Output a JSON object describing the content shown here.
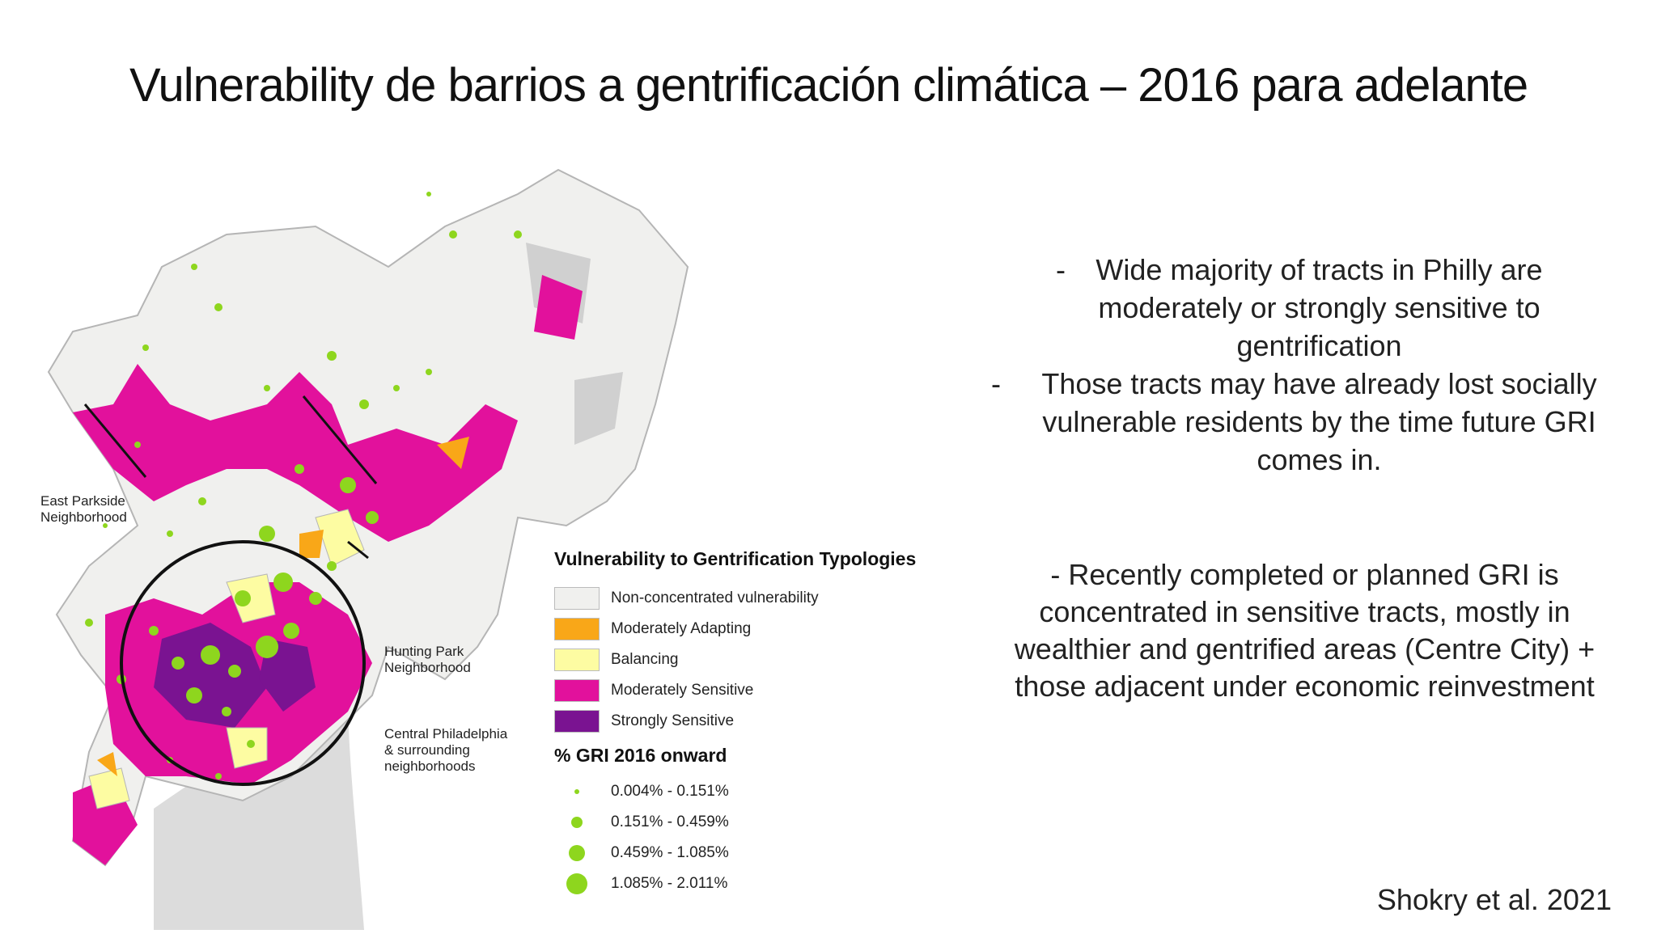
{
  "slide": {
    "title": "Vulnerability de barrios a gentrificación climática – 2016 para adelante",
    "citation": "Shokry et al. 2021"
  },
  "bullets": [
    {
      "dash": "-",
      "text": "Wide majority of tracts in Philly are moderately or strongly sensitive to gentrification"
    },
    {
      "dash": "-",
      "text": "Those tracts may have already lost socially vulnerable residents by the time future GRI comes in."
    }
  ],
  "paragraph": "- Recently completed or planned GRI is concentrated in sensitive tracts, mostly in wealthier and gentrified areas (Centre City) + those adjacent under economic reinvestment",
  "map": {
    "callouts": {
      "east_parkside": "East Parkside Neighborhood",
      "hunting_park": "Hunting Park Neighborhood",
      "central": "Central Philadelphia & surrounding neighborhoods"
    },
    "legend": {
      "title": "Vulnerability to Gentrification Typologies",
      "categories": [
        {
          "label": "Non-concentrated vulnerability",
          "color": "#f0f0ee"
        },
        {
          "label": "Moderately Adapting",
          "color": "#f9a718"
        },
        {
          "label": "Balancing",
          "color": "#fdfca2"
        },
        {
          "label": "Moderately Sensitive",
          "color": "#e2119c"
        },
        {
          "label": "Strongly Sensitive",
          "color": "#7a1391"
        }
      ],
      "gri_title": "% GRI 2016 onward",
      "gri_classes": [
        {
          "label": "0.004% - 0.151%",
          "size": "small"
        },
        {
          "label": "0.151% - 0.459%",
          "size": "medium"
        },
        {
          "label": "0.459% - 1.085%",
          "size": "large"
        },
        {
          "label": "1.085% - 2.011%",
          "size": "xlarge"
        }
      ],
      "gri_color": "#8ed61e"
    }
  }
}
